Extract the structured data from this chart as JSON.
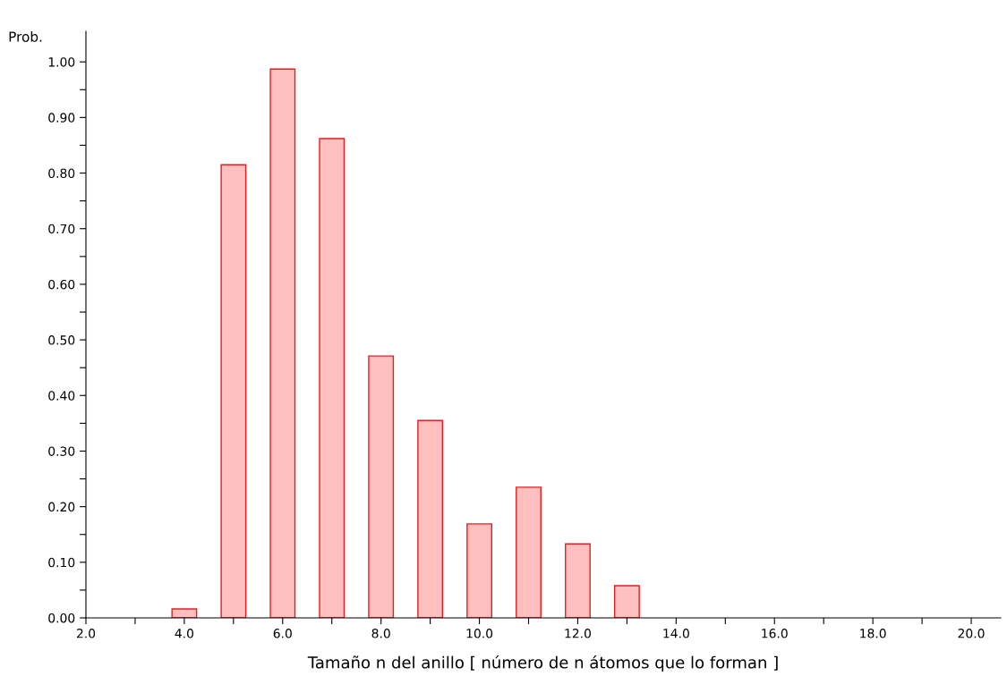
{
  "chart_data": {
    "type": "bar",
    "ylabel": "Prob.",
    "xlabel": "Tamaño n del anillo [ número de n átomos que lo forman ]",
    "x": [
      4,
      5,
      6,
      7,
      8,
      9,
      10,
      11,
      12,
      13
    ],
    "values": [
      0.016,
      0.815,
      0.987,
      0.862,
      0.471,
      0.355,
      0.169,
      0.235,
      0.133,
      0.058
    ],
    "color": "#ffbfbf",
    "xlim": [
      2,
      20.6
    ],
    "ylim": [
      0,
      1.055
    ],
    "xticks": [
      {
        "value": 2,
        "label": "2.0"
      },
      {
        "value": 3,
        "label": null
      },
      {
        "value": 4,
        "label": "4.0"
      },
      {
        "value": 5,
        "label": null
      },
      {
        "value": 6,
        "label": "6.0"
      },
      {
        "value": 7,
        "label": null
      },
      {
        "value": 8,
        "label": "8.0"
      },
      {
        "value": 9,
        "label": null
      },
      {
        "value": 10,
        "label": "10.0"
      },
      {
        "value": 11,
        "label": null
      },
      {
        "value": 12,
        "label": "12.0"
      },
      {
        "value": 13,
        "label": null
      },
      {
        "value": 14,
        "label": "14.0"
      },
      {
        "value": 15,
        "label": null
      },
      {
        "value": 16,
        "label": "16.0"
      },
      {
        "value": 17,
        "label": null
      },
      {
        "value": 18,
        "label": "18.0"
      },
      {
        "value": 19,
        "label": null
      },
      {
        "value": 20,
        "label": "20.0"
      }
    ],
    "yticks": [
      {
        "value": 0,
        "label": "0.00"
      },
      {
        "value": 0.05,
        "label": null
      },
      {
        "value": 0.1,
        "label": "0.10"
      },
      {
        "value": 0.15,
        "label": null
      },
      {
        "value": 0.2,
        "label": "0.20"
      },
      {
        "value": 0.25,
        "label": null
      },
      {
        "value": 0.3,
        "label": "0.30"
      },
      {
        "value": 0.35,
        "label": null
      },
      {
        "value": 0.4,
        "label": "0.40"
      },
      {
        "value": 0.45,
        "label": null
      },
      {
        "value": 0.5,
        "label": "0.50"
      },
      {
        "value": 0.55,
        "label": null
      },
      {
        "value": 0.6,
        "label": "0.60"
      },
      {
        "value": 0.65,
        "label": null
      },
      {
        "value": 0.7,
        "label": "0.70"
      },
      {
        "value": 0.75,
        "label": null
      },
      {
        "value": 0.8,
        "label": "0.80"
      },
      {
        "value": 0.85,
        "label": null
      },
      {
        "value": 0.9,
        "label": "0.90"
      },
      {
        "value": 0.95,
        "label": null
      },
      {
        "value": 1.0,
        "label": "1.00"
      }
    ]
  }
}
